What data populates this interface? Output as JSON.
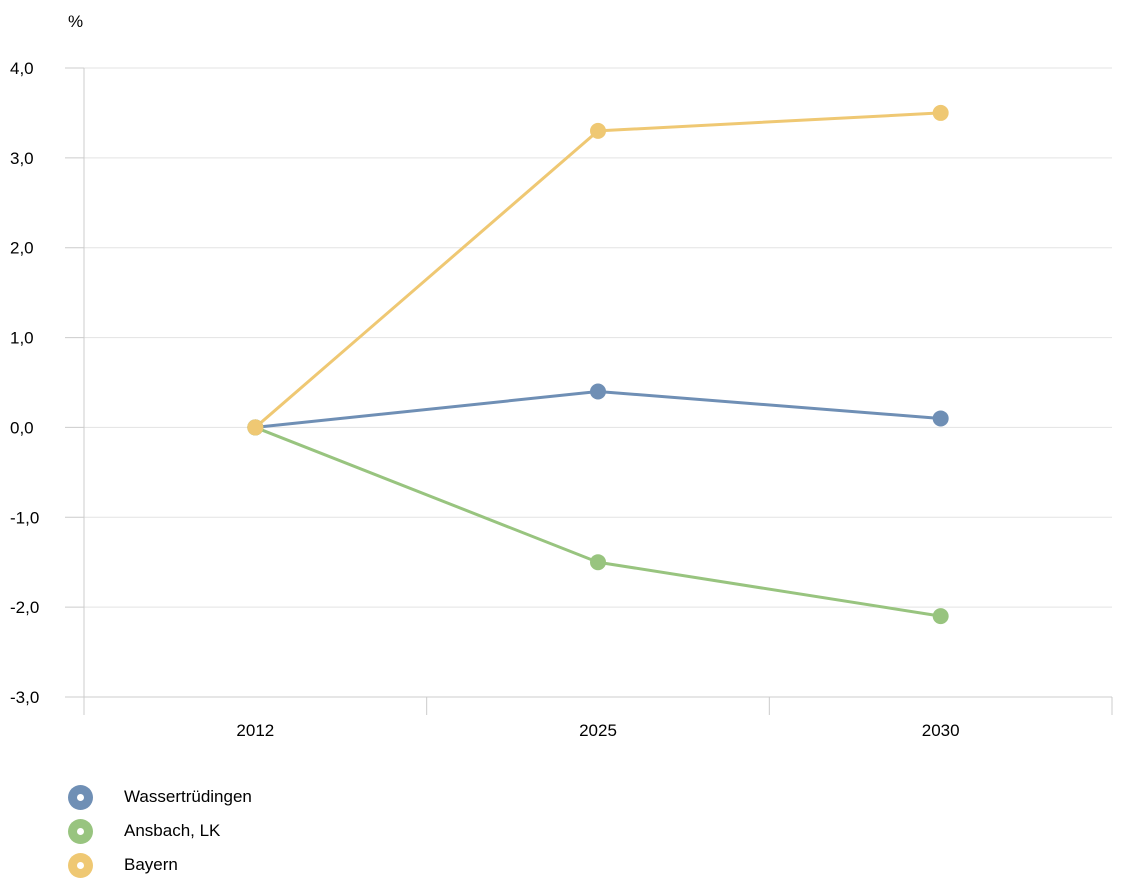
{
  "chart_data": {
    "type": "line",
    "title": "",
    "unit_label": "%",
    "xlabel": "",
    "ylabel": "%",
    "categories": [
      "2012",
      "2025",
      "2030"
    ],
    "ylim": [
      -3.0,
      4.0
    ],
    "yticks": [
      -3.0,
      -2.0,
      -1.0,
      0.0,
      1.0,
      2.0,
      3.0,
      4.0
    ],
    "ytick_labels": [
      "-3,0",
      "-2,0",
      "-1,0",
      "0,0",
      "1,0",
      "2,0",
      "3,0",
      "4,0"
    ],
    "grid": true,
    "legend_position": "bottom-left",
    "series": [
      {
        "name": "Wassertrüdingen",
        "color": "#6f8fb5",
        "values": [
          0.0,
          0.4,
          0.1
        ]
      },
      {
        "name": "Ansbach, LK",
        "color": "#98c47f",
        "values": [
          0.0,
          -1.5,
          -2.1
        ]
      },
      {
        "name": "Bayern",
        "color": "#efc873",
        "values": [
          0.0,
          3.3,
          3.5
        ]
      }
    ]
  }
}
